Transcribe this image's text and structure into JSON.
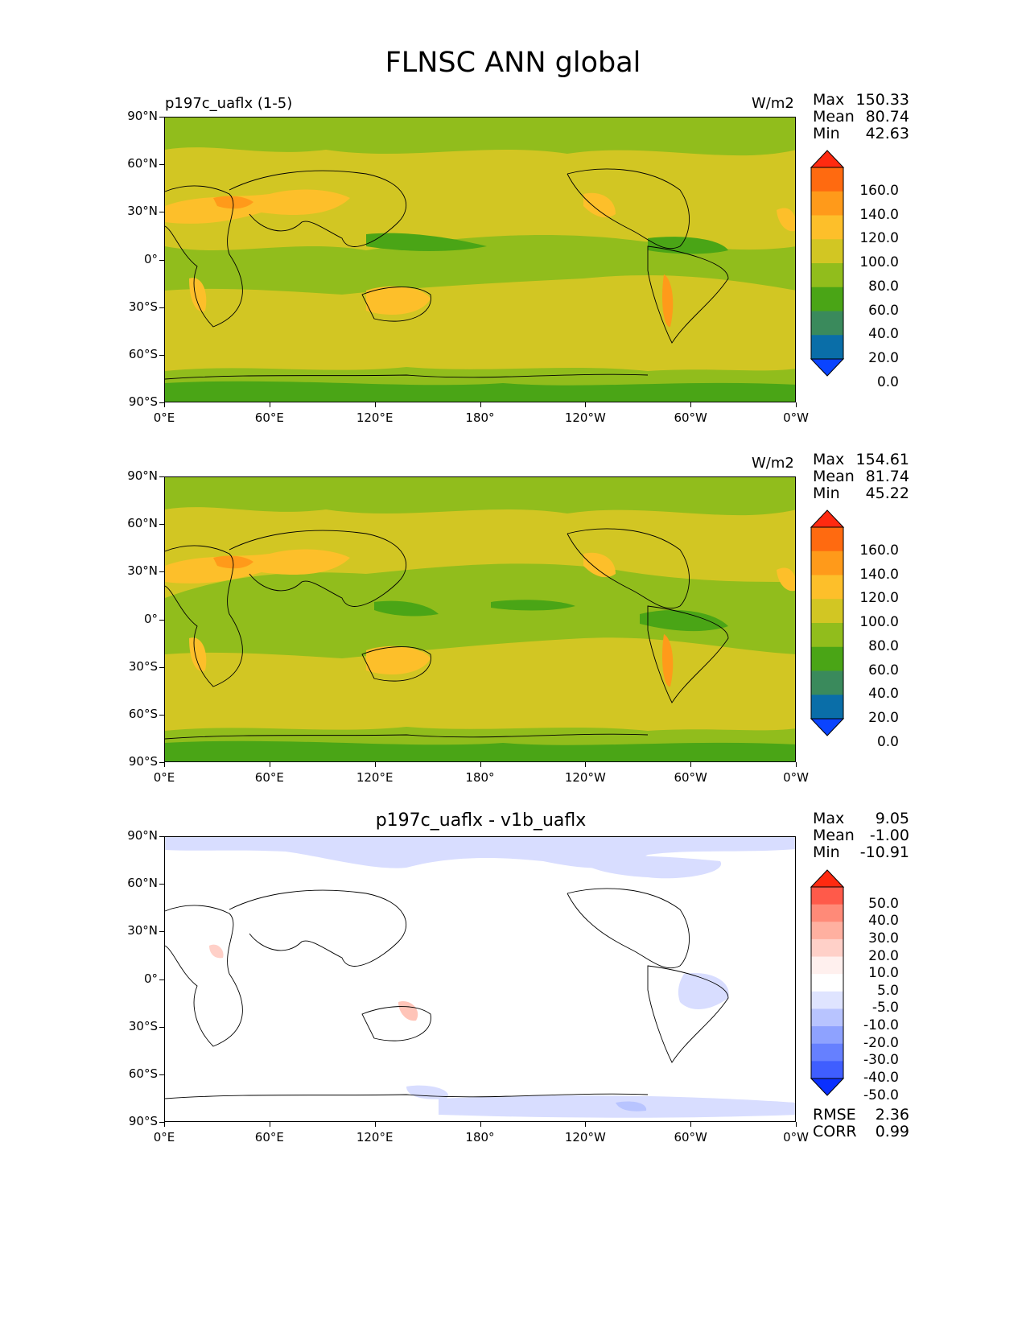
{
  "title": "FLNSC ANN global",
  "lat_ticks": [
    "90°N",
    "60°N",
    "30°N",
    "0°",
    "30°S",
    "60°S",
    "90°S"
  ],
  "lon_ticks": [
    "0°E",
    "60°E",
    "120°E",
    "180°",
    "120°W",
    "60°W",
    "0°W"
  ],
  "stat_labels": {
    "max": "Max",
    "mean": "Mean",
    "min": "Min",
    "rmse": "RMSE",
    "corr": "CORR"
  },
  "panels": [
    {
      "left_title": "p197c_uaflx (1-5)",
      "center_title": "",
      "units": "W/m2",
      "stats": {
        "max": "150.33",
        "mean": "80.74",
        "min": "42.63"
      },
      "colorbar": {
        "labels": [
          "160.0",
          "140.0",
          "120.0",
          "100.0",
          "80.0",
          "60.0",
          "40.0",
          "20.0",
          "0.0"
        ],
        "colors": [
          "#ff2a10",
          "#ff6a10",
          "#ff9a1a",
          "#fdbf2a",
          "#d2c623",
          "#91bd1c",
          "#4aa516",
          "#3a8a5c",
          "#0a6ea8",
          "#0a44ff"
        ]
      }
    },
    {
      "left_title": "",
      "center_title": "",
      "units": "W/m2",
      "stats": {
        "max": "154.61",
        "mean": "81.74",
        "min": "45.22"
      },
      "colorbar": {
        "labels": [
          "160.0",
          "140.0",
          "120.0",
          "100.0",
          "80.0",
          "60.0",
          "40.0",
          "20.0",
          "0.0"
        ],
        "colors": [
          "#ff2a10",
          "#ff6a10",
          "#ff9a1a",
          "#fdbf2a",
          "#d2c623",
          "#91bd1c",
          "#4aa516",
          "#3a8a5c",
          "#0a6ea8",
          "#0a44ff"
        ]
      }
    },
    {
      "left_title": "",
      "center_title": "p197c_uaflx - v1b_uaflx",
      "units": "",
      "stats": {
        "max": "9.05",
        "mean": "-1.00",
        "min": "-10.91"
      },
      "extra_stats": {
        "rmse": "2.36",
        "corr": "0.99"
      },
      "colorbar": {
        "labels": [
          "50.0",
          "40.0",
          "30.0",
          "20.0",
          "10.0",
          "5.0",
          "-5.0",
          "-10.0",
          "-20.0",
          "-30.0",
          "-40.0",
          "-50.0"
        ],
        "colors": [
          "#ff2a10",
          "#ff5a4a",
          "#ff8a78",
          "#ffb0a0",
          "#ffd0c8",
          "#fff0ee",
          "#ffffff",
          "#dfe4ff",
          "#b8c4ff",
          "#8ea2ff",
          "#6680ff",
          "#3f5eff",
          "#0a30ff"
        ]
      }
    }
  ]
}
